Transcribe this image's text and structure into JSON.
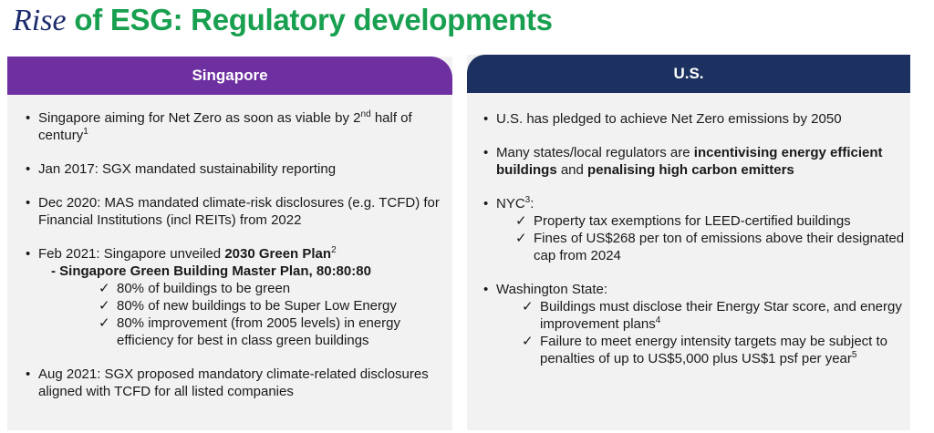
{
  "title": {
    "rise": "Rise",
    "rest": " of ESG: Regulatory developments"
  },
  "colors": {
    "title_green": "#18a050",
    "title_navy": "#1c2a6b",
    "singapore_header": "#6e2fa0",
    "us_header": "#1c3160",
    "panel_bg": "#f2f2f2"
  },
  "singapore": {
    "header": "Singapore",
    "b1": {
      "a": "Singapore aiming for Net Zero as soon as viable by 2",
      "sup": "nd",
      "b": " half of century",
      "sup2": "1"
    },
    "b2": "Jan 2017: SGX mandated sustainability reporting",
    "b3": "Dec 2020: MAS mandated climate-risk disclosures (e.g. TCFD) for Financial Institutions (incl REITs) from 2022",
    "b4": {
      "a": "Feb 2021: Singapore unveiled ",
      "bold": "2030 Green Plan",
      "sup": "2"
    },
    "b4_sub": "- Singapore Green Building Master Plan, 80:80:80",
    "checks": [
      "80% of buildings to be green",
      "80% of new buildings to be Super Low Energy",
      "80% improvement (from 2005 levels) in energy efficiency for best in class green buildings"
    ],
    "b5": "Aug 2021: SGX proposed mandatory climate-related disclosures aligned with TCFD for all listed companies"
  },
  "us": {
    "header": "U.S.",
    "b1": "U.S. has pledged to achieve Net Zero emissions by 2050",
    "b2": {
      "a": "Many states/local regulators are ",
      "bold1": "incentivising energy efficient buildings",
      "mid": " and ",
      "bold2": "penalising high carbon emitters"
    },
    "b3": {
      "a": "NYC",
      "sup": "3",
      "b": ":"
    },
    "nyc_checks": [
      "Property tax exemptions for LEED-certified buildings",
      "Fines of US$268 per ton of emissions above their designated cap from 2024"
    ],
    "b4": "Washington State:",
    "wa_check1": {
      "a": "Buildings must disclose their Energy Star score, and energy improvement plans",
      "sup": "4"
    },
    "wa_check2": {
      "a": "Failure to meet energy intensity targets may be subject to penalties of up to US$5,000 plus US$1 psf per year",
      "sup": "5"
    }
  },
  "symbols": {
    "bullet": "•",
    "check": "✓"
  }
}
